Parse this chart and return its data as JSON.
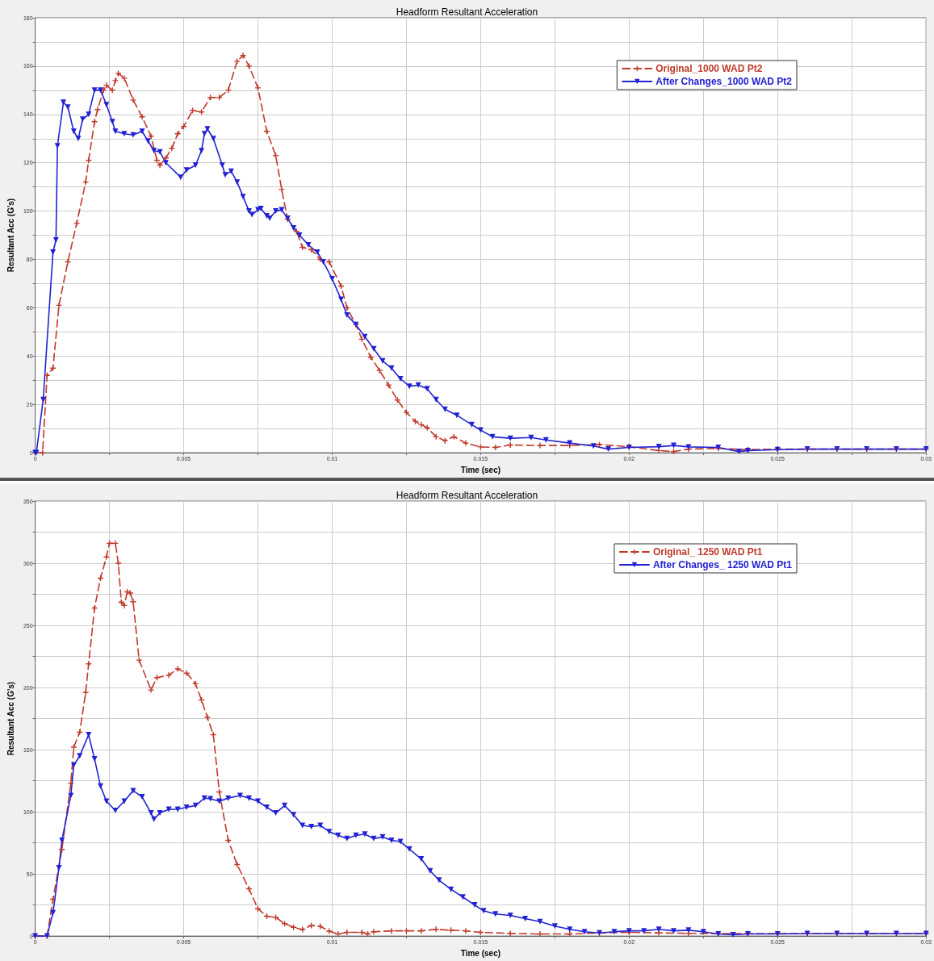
{
  "chart_data": [
    {
      "type": "line",
      "title": "Headform Resultant Acceleration",
      "xlabel": "Time (sec)",
      "ylabel": "Resultant Acc (G's)",
      "grid": true,
      "legend": "top right",
      "xlim": [
        0,
        0.03
      ],
      "ylim": [
        0,
        180
      ],
      "xticks": [
        0,
        {
          "value": 0.0025,
          "label": null
        },
        0.005,
        {
          "value": 0.0075,
          "label": null
        },
        0.01,
        {
          "value": 0.0125,
          "label": null
        },
        0.015,
        {
          "value": 0.0175,
          "label": null
        },
        0.02,
        {
          "value": 0.0225,
          "label": null
        },
        0.025,
        {
          "value": 0.0275,
          "label": null
        },
        0.03
      ],
      "yticks": [
        0,
        {
          "value": 10,
          "label": null
        },
        20,
        {
          "value": 30,
          "label": null
        },
        40,
        {
          "value": 50,
          "label": null
        },
        60,
        {
          "value": 70,
          "label": null
        },
        80,
        {
          "value": 90,
          "label": null
        },
        100,
        {
          "value": 110,
          "label": null
        },
        120,
        {
          "value": 130,
          "label": null
        },
        140,
        {
          "value": 150,
          "label": null
        },
        160,
        {
          "value": 170,
          "label": null
        },
        180
      ],
      "series": [
        {
          "name": "Original_1000 WAD Pt2",
          "color": "#c0392b",
          "marker": "cross",
          "line_style": "dashed",
          "x": [
            0,
            0.00025,
            0.0004,
            0.0006,
            0.0008,
            0.0011,
            0.0014,
            0.0017,
            0.0018,
            0.002,
            0.0021,
            0.0023,
            0.0024,
            0.0026,
            0.0027,
            0.0028,
            0.003,
            0.0033,
            0.0036,
            0.0039,
            0.0041,
            0.0042,
            0.0044,
            0.0046,
            0.0048,
            0.005,
            0.0053,
            0.0056,
            0.0059,
            0.0062,
            0.0065,
            0.0068,
            0.007,
            0.0072,
            0.0075,
            0.0078,
            0.0081,
            0.0083,
            0.0085,
            0.0088,
            0.009,
            0.0093,
            0.0096,
            0.0099,
            0.0103,
            0.0105,
            0.0108,
            0.011,
            0.0113,
            0.0116,
            0.0119,
            0.0122,
            0.0125,
            0.0128,
            0.013,
            0.0132,
            0.0135,
            0.0138,
            0.0141,
            0.0145,
            0.015,
            0.0155,
            0.016,
            0.017,
            0.018,
            0.019,
            0.02,
            0.021,
            0.0215,
            0.022,
            0.023,
            0.024,
            0.025,
            0.026,
            0.027,
            0.028,
            0.029,
            0.03
          ],
          "values": [
            0,
            0,
            32,
            35,
            61,
            79,
            95,
            112,
            121,
            137,
            142,
            150,
            152,
            150,
            154,
            157,
            155,
            146,
            139,
            131,
            121,
            119,
            122,
            126,
            132,
            135,
            141.6,
            141,
            147,
            147,
            150,
            162,
            164.4,
            160,
            151,
            133,
            123,
            109,
            96.7,
            91.6,
            85,
            84,
            80,
            79,
            69,
            60,
            53,
            47,
            39.5,
            34,
            28,
            21.8,
            16.7,
            13,
            11.6,
            10.4,
            6.6,
            5,
            6.6,
            4,
            2.4,
            2.2,
            3.2,
            3,
            3,
            3.4,
            2.5,
            0.9,
            0.5,
            1.5,
            1.8,
            1.3,
            1.5,
            1.5,
            1.5,
            1.5,
            1.5,
            1.5
          ]
        },
        {
          "name": "After Changes_1000 WAD Pt2",
          "color": "#2222d4",
          "marker": "triangle",
          "line_style": "solid",
          "x": [
            0,
            4e-05,
            0.00027,
            0.0006,
            0.0007,
            0.00075,
            0.00095,
            0.0011,
            0.0013,
            0.00145,
            0.0016,
            0.0018,
            0.002,
            0.0022,
            0.0024,
            0.0026,
            0.0027,
            0.003,
            0.0033,
            0.0036,
            0.0038,
            0.004,
            0.0042,
            0.0044,
            0.0049,
            0.0051,
            0.0054,
            0.0056,
            0.0057,
            0.0058,
            0.006,
            0.0063,
            0.0064,
            0.0066,
            0.0068,
            0.007,
            0.0072,
            0.0073,
            0.0075,
            0.0076,
            0.0078,
            0.0079,
            0.0081,
            0.0083,
            0.0085,
            0.0087,
            0.0089,
            0.0092,
            0.0095,
            0.0097,
            0.01,
            0.0103,
            0.0105,
            0.0108,
            0.0111,
            0.0114,
            0.0117,
            0.012,
            0.0123,
            0.0126,
            0.0129,
            0.0132,
            0.0135,
            0.0138,
            0.0142,
            0.0147,
            0.015,
            0.0154,
            0.016,
            0.0167,
            0.0172,
            0.018,
            0.0188,
            0.0193,
            0.02,
            0.021,
            0.0215,
            0.022,
            0.023,
            0.0237,
            0.024,
            0.025,
            0.026,
            0.027,
            0.028,
            0.029,
            0.03
          ],
          "values": [
            0,
            0,
            22,
            83,
            88,
            127,
            145,
            143,
            133,
            130,
            138,
            140,
            150,
            150,
            144,
            137,
            133,
            132,
            131.5,
            133,
            129,
            125,
            124.5,
            120,
            114,
            117,
            119,
            125,
            132,
            134,
            130,
            119,
            115,
            116.5,
            112,
            106,
            100,
            98.5,
            100.5,
            101,
            98,
            97,
            100,
            100.5,
            97,
            93,
            90,
            86,
            83,
            79,
            72,
            63.5,
            57,
            53,
            48,
            43,
            38,
            35,
            30.6,
            27.5,
            28,
            26.5,
            22,
            18,
            15.5,
            11.6,
            9.4,
            6.6,
            6,
            6.3,
            5.3,
            4,
            2.8,
            1.5,
            2.2,
            2.5,
            3,
            2.4,
            2.2,
            0.5,
            0.9,
            1.3,
            1.5,
            1.5,
            1.5,
            1.5,
            1.5
          ]
        }
      ]
    },
    {
      "type": "line",
      "title": "Headform Resultant Acceleration",
      "xlabel": "Time (sec)",
      "ylabel": "Resultant Acc (G's)",
      "grid": true,
      "legend": "top right",
      "xlim": [
        0,
        0.03
      ],
      "ylim": [
        0,
        350
      ],
      "xticks": [
        0,
        {
          "value": 0.0025,
          "label": null
        },
        0.005,
        {
          "value": 0.0075,
          "label": null
        },
        0.01,
        {
          "value": 0.0125,
          "label": null
        },
        0.015,
        {
          "value": 0.0175,
          "label": null
        },
        0.02,
        {
          "value": 0.0225,
          "label": null
        },
        0.025,
        {
          "value": 0.0275,
          "label": null
        },
        0.03
      ],
      "yticks": [
        0,
        {
          "value": 25,
          "label": null
        },
        50,
        {
          "value": 75,
          "label": null
        },
        100,
        {
          "value": 125,
          "label": null
        },
        150,
        {
          "value": 175,
          "label": null
        },
        200,
        {
          "value": 225,
          "label": null
        },
        250,
        {
          "value": 275,
          "label": null
        },
        300,
        {
          "value": 325,
          "label": null
        },
        350
      ],
      "series": [
        {
          "name": "Original_ 1250 WAD Pt1",
          "color": "#c0392b",
          "marker": "cross",
          "line_style": "dashed",
          "x": [
            0,
            0.0004,
            0.0006,
            0.0009,
            0.0012,
            0.0013,
            0.0015,
            0.0017,
            0.0018,
            0.002,
            0.0022,
            0.0024,
            0.0025,
            0.0027,
            0.0028,
            0.0029,
            0.003,
            0.0031,
            0.0032,
            0.0033,
            0.0035,
            0.0039,
            0.0041,
            0.0045,
            0.0048,
            0.0051,
            0.0054,
            0.0056,
            0.0058,
            0.006,
            0.0062,
            0.0065,
            0.0068,
            0.0072,
            0.0075,
            0.0078,
            0.0081,
            0.0084,
            0.0087,
            0.009,
            0.0093,
            0.0096,
            0.0099,
            0.0102,
            0.0105,
            0.011,
            0.0112,
            0.0114,
            0.012,
            0.0125,
            0.013,
            0.0135,
            0.014,
            0.0145,
            0.015,
            0.016,
            0.017,
            0.018,
            0.019,
            0.02,
            0.021,
            0.022,
            0.023,
            0.024,
            0.025,
            0.026,
            0.027,
            0.028,
            0.029,
            0.03
          ],
          "values": [
            0,
            0,
            29.6,
            69.7,
            123,
            152,
            164,
            196,
            219,
            264,
            288,
            305,
            316,
            316,
            300,
            268.7,
            266,
            277,
            276,
            269,
            222,
            198,
            208,
            210,
            215,
            211.6,
            203,
            190,
            176,
            162,
            116,
            77,
            57.5,
            38,
            22,
            16,
            15,
            10,
            7,
            5.3,
            8.5,
            7.8,
            4,
            1.7,
            3,
            3,
            1.7,
            3.5,
            4.2,
            4.2,
            4.2,
            5.4,
            4.7,
            4.2,
            3,
            2.2,
            1.7,
            1.7,
            2.5,
            3,
            2.5,
            2.2,
            2,
            2,
            2,
            2,
            2,
            2,
            2,
            2
          ]
        },
        {
          "name": "After Changes_ 1250 WAD Pt1",
          "color": "#2222d4",
          "marker": "triangle",
          "line_style": "solid",
          "x": [
            0,
            0.0004,
            0.0006,
            0.0008,
            0.0009,
            0.0012,
            0.0013,
            0.0015,
            0.0018,
            0.002,
            0.0022,
            0.0024,
            0.0027,
            0.003,
            0.0033,
            0.0036,
            0.0039,
            0.004,
            0.0042,
            0.0045,
            0.0048,
            0.0051,
            0.0054,
            0.0057,
            0.0059,
            0.0062,
            0.0065,
            0.0069,
            0.0072,
            0.0075,
            0.0078,
            0.0081,
            0.0084,
            0.0087,
            0.009,
            0.0093,
            0.0096,
            0.0099,
            0.0102,
            0.0105,
            0.0108,
            0.0111,
            0.0114,
            0.0117,
            0.012,
            0.0123,
            0.0126,
            0.013,
            0.0133,
            0.0136,
            0.014,
            0.0144,
            0.0148,
            0.0151,
            0.0155,
            0.016,
            0.0165,
            0.017,
            0.0175,
            0.018,
            0.0185,
            0.019,
            0.0195,
            0.02,
            0.0205,
            0.021,
            0.0215,
            0.022,
            0.0225,
            0.023,
            0.0235,
            0.024,
            0.025,
            0.026,
            0.027,
            0.028,
            0.029,
            0.03
          ],
          "values": [
            0,
            0,
            18.7,
            55,
            77,
            113,
            137.6,
            145,
            162,
            142.5,
            120.6,
            108.5,
            101,
            108.5,
            117,
            112,
            99,
            94,
            99,
            102,
            102,
            103.6,
            105,
            111,
            110.4,
            108.5,
            111,
            113,
            111,
            108.5,
            103.6,
            99,
            105,
            97.6,
            89,
            88,
            89,
            84,
            81,
            78.5,
            81,
            82,
            78.5,
            79.7,
            77,
            76,
            70,
            62,
            52.5,
            45,
            37.6,
            31.4,
            25,
            20.3,
            17.8,
            16.6,
            14,
            11.6,
            8,
            5.4,
            3.5,
            2.5,
            3.5,
            4.2,
            4.2,
            5.4,
            4.2,
            4.7,
            3.5,
            1.7,
            1,
            1.7,
            1.7,
            2,
            2,
            2,
            2,
            2
          ]
        }
      ]
    }
  ]
}
